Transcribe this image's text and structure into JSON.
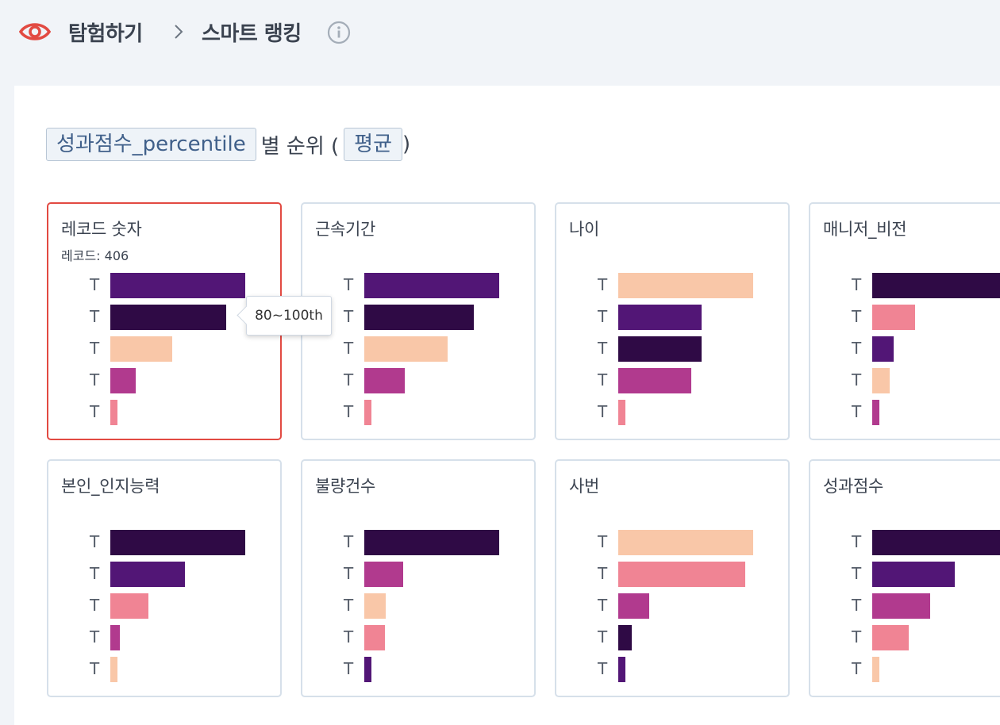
{
  "header": {
    "breadcrumb_root": "탐험하기",
    "breadcrumb_current": "스마트 랭킹",
    "colors": {
      "eye": "#e24a42",
      "text": "#3b4350"
    }
  },
  "title": {
    "measure": "성과점수_percentile",
    "middle": "별 순위 (",
    "aggregate": "평균",
    "end": ")"
  },
  "tooltip": {
    "text": "80~100th"
  },
  "palette": {
    "dark": "#2f0a45",
    "purple": "#521676",
    "magenta": "#b13a8e",
    "pink": "#f08494",
    "peach": "#f9c7a8"
  },
  "cards": [
    {
      "title": "레코드 숫자",
      "subtitle": "레코드: 406",
      "selected": true,
      "bars": [
        {
          "label": "T",
          "value": 1.0,
          "color": "purple"
        },
        {
          "label": "T",
          "value": 0.86,
          "color": "dark"
        },
        {
          "label": "T",
          "value": 0.46,
          "color": "peach"
        },
        {
          "label": "T",
          "value": 0.19,
          "color": "magenta"
        },
        {
          "label": "T",
          "value": 0.05,
          "color": "pink"
        }
      ]
    },
    {
      "title": "근속기간",
      "bars": [
        {
          "label": "T",
          "value": 1.0,
          "color": "purple"
        },
        {
          "label": "T",
          "value": 0.81,
          "color": "dark"
        },
        {
          "label": "T",
          "value": 0.62,
          "color": "peach"
        },
        {
          "label": "T",
          "value": 0.3,
          "color": "magenta"
        },
        {
          "label": "T",
          "value": 0.05,
          "color": "pink"
        }
      ]
    },
    {
      "title": "나이",
      "bars": [
        {
          "label": "T",
          "value": 1.0,
          "color": "peach"
        },
        {
          "label": "T",
          "value": 0.62,
          "color": "purple"
        },
        {
          "label": "T",
          "value": 0.62,
          "color": "dark"
        },
        {
          "label": "T",
          "value": 0.54,
          "color": "magenta"
        },
        {
          "label": "T",
          "value": 0.05,
          "color": "pink"
        }
      ]
    },
    {
      "title": "매니저_비전",
      "bars": [
        {
          "label": "T",
          "value": 1.0,
          "color": "dark"
        },
        {
          "label": "T",
          "value": 0.32,
          "color": "pink"
        },
        {
          "label": "T",
          "value": 0.16,
          "color": "purple"
        },
        {
          "label": "T",
          "value": 0.13,
          "color": "peach"
        },
        {
          "label": "T",
          "value": 0.05,
          "color": "magenta"
        }
      ]
    },
    {
      "title": "본인_인지능력",
      "bars": [
        {
          "label": "T",
          "value": 1.0,
          "color": "dark"
        },
        {
          "label": "T",
          "value": 0.55,
          "color": "purple"
        },
        {
          "label": "T",
          "value": 0.28,
          "color": "pink"
        },
        {
          "label": "T",
          "value": 0.07,
          "color": "magenta"
        },
        {
          "label": "T",
          "value": 0.05,
          "color": "peach"
        }
      ]
    },
    {
      "title": "불량건수",
      "bars": [
        {
          "label": "T",
          "value": 1.0,
          "color": "dark"
        },
        {
          "label": "T",
          "value": 0.29,
          "color": "magenta"
        },
        {
          "label": "T",
          "value": 0.16,
          "color": "peach"
        },
        {
          "label": "T",
          "value": 0.15,
          "color": "pink"
        },
        {
          "label": "T",
          "value": 0.05,
          "color": "purple"
        }
      ]
    },
    {
      "title": "사번",
      "bars": [
        {
          "label": "T",
          "value": 1.0,
          "color": "peach"
        },
        {
          "label": "T",
          "value": 0.94,
          "color": "pink"
        },
        {
          "label": "T",
          "value": 0.23,
          "color": "magenta"
        },
        {
          "label": "T",
          "value": 0.1,
          "color": "dark"
        },
        {
          "label": "T",
          "value": 0.05,
          "color": "purple"
        }
      ]
    },
    {
      "title": "성과점수",
      "bars": [
        {
          "label": "T",
          "value": 1.0,
          "color": "dark"
        },
        {
          "label": "T",
          "value": 0.61,
          "color": "purple"
        },
        {
          "label": "T",
          "value": 0.43,
          "color": "magenta"
        },
        {
          "label": "T",
          "value": 0.27,
          "color": "pink"
        },
        {
          "label": "T",
          "value": 0.05,
          "color": "peach"
        }
      ]
    }
  ]
}
